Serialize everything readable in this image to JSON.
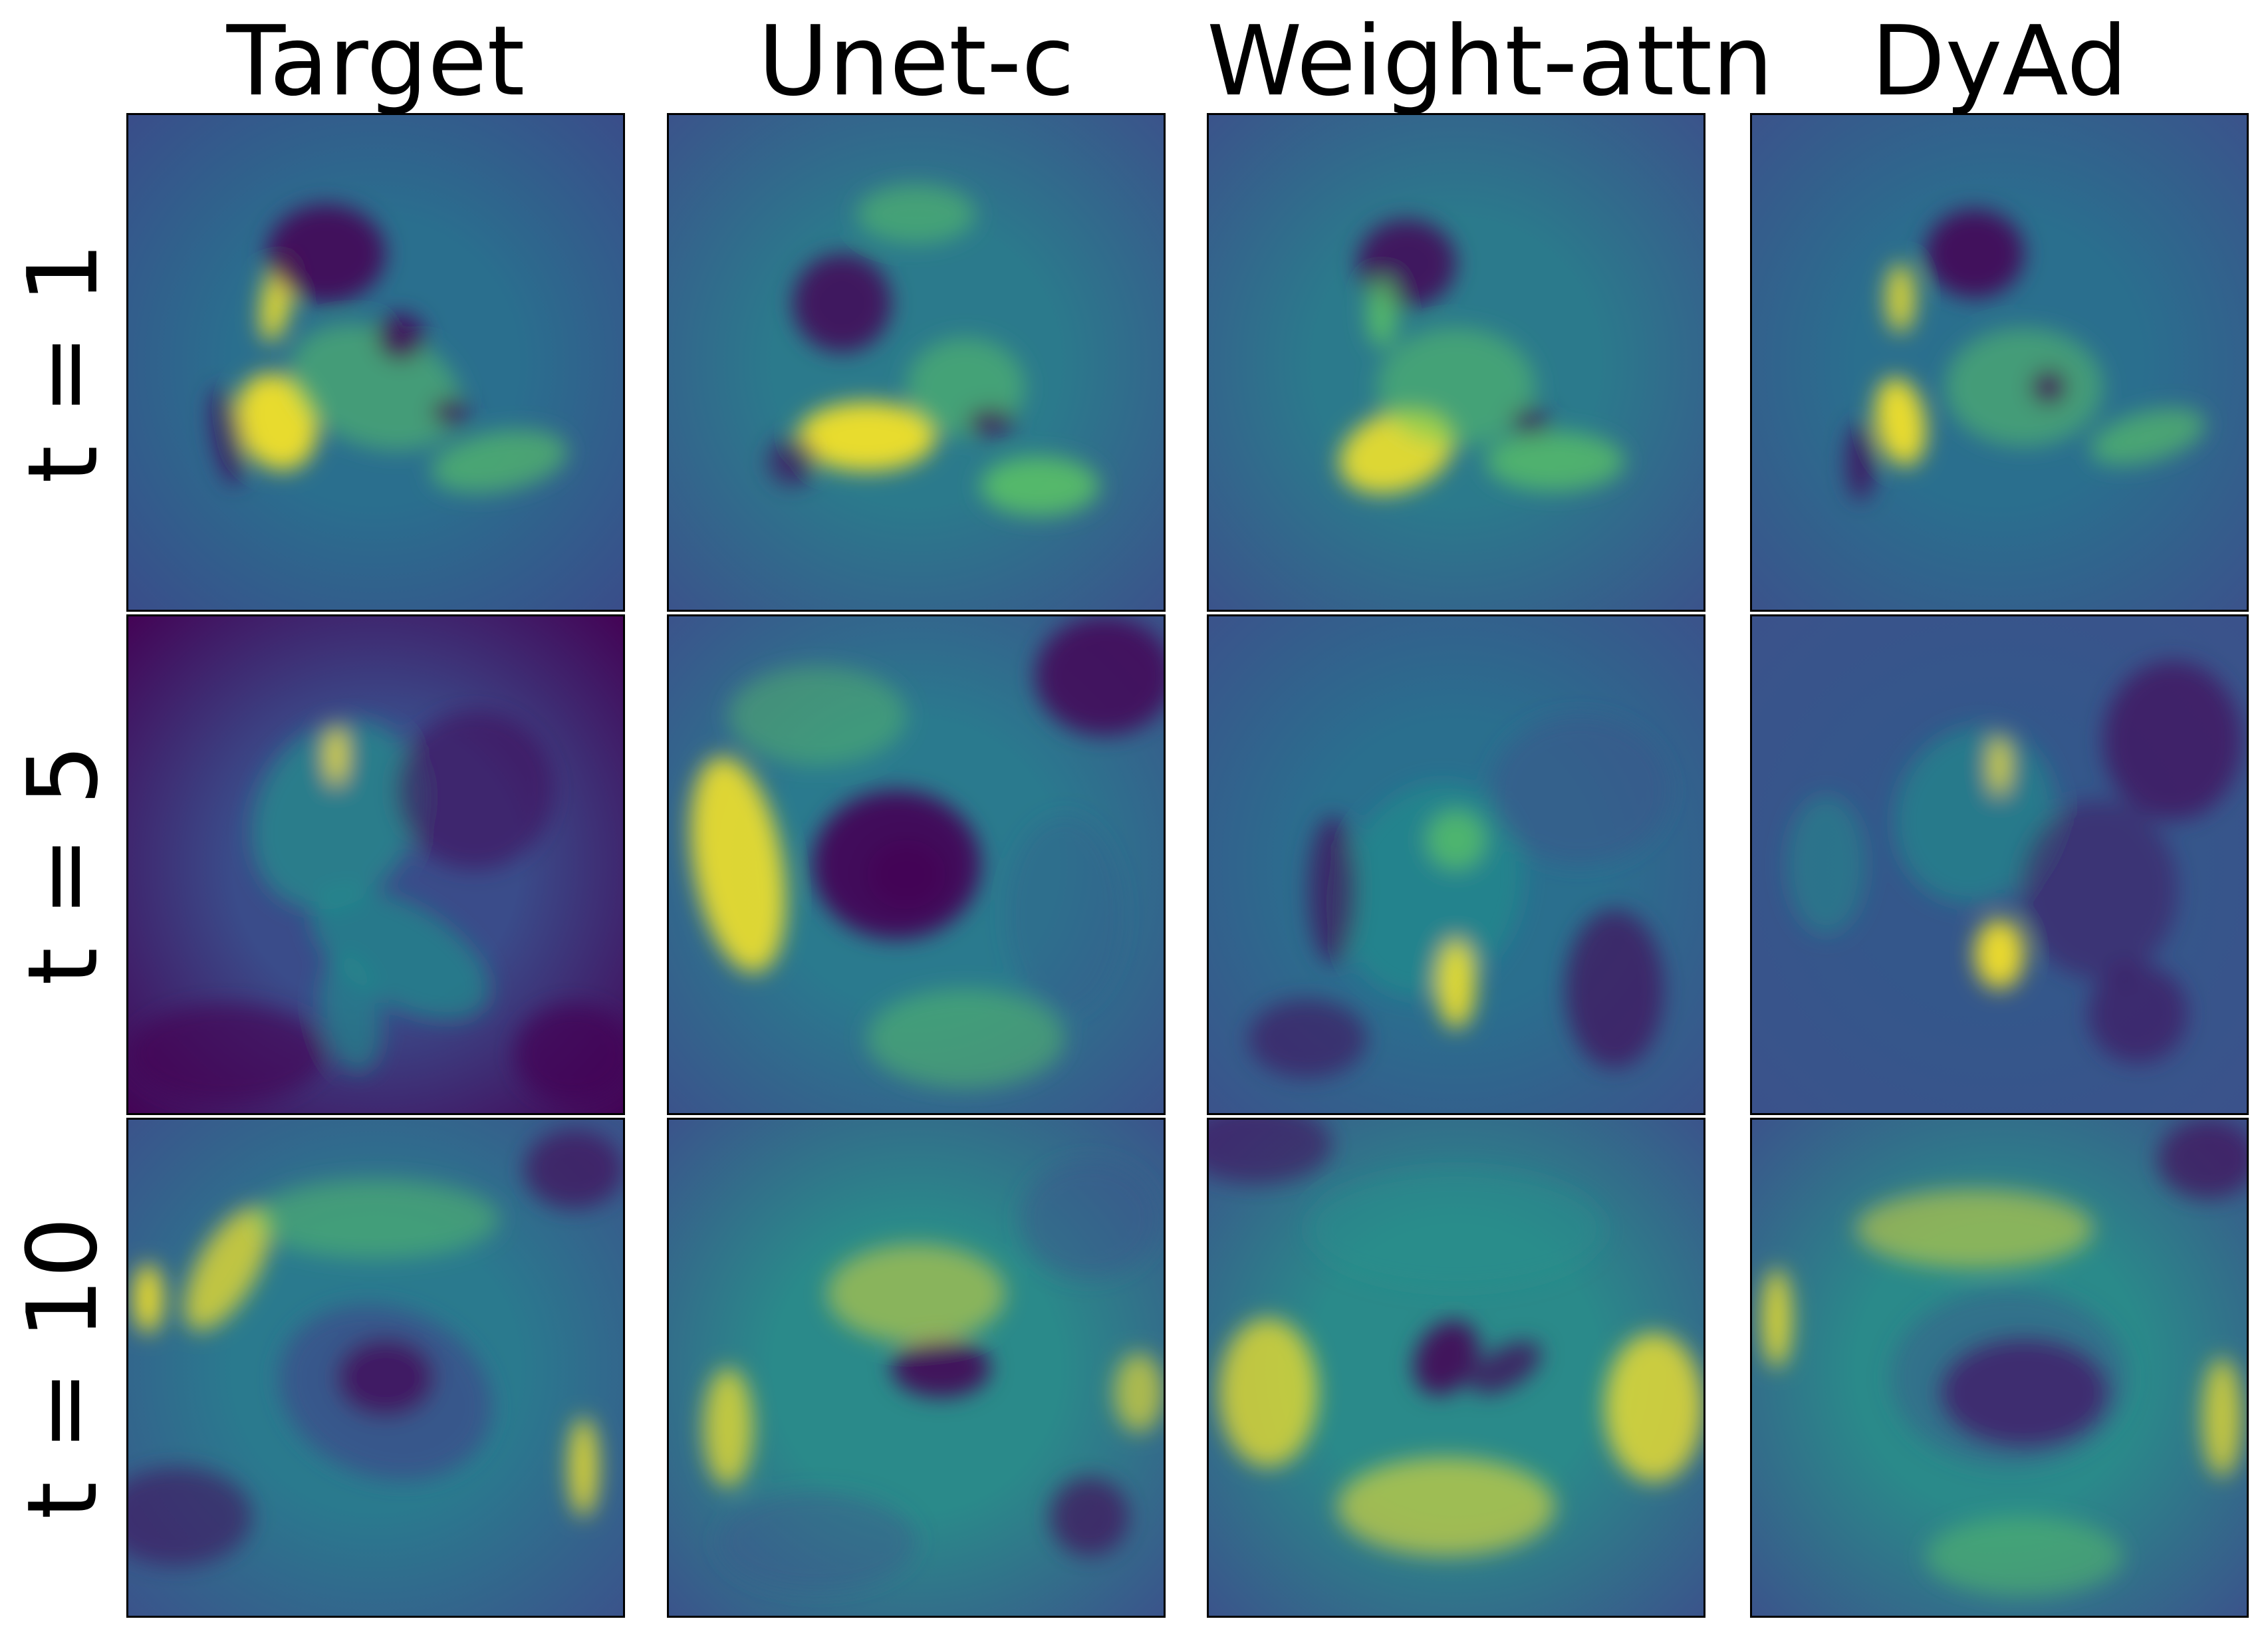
{
  "columns": [
    "Target",
    "Unet-c",
    "Weight-attn",
    "DyAd"
  ],
  "rows": [
    "t = 1",
    "t = 5",
    "t = 10"
  ],
  "colormap": {
    "name": "viridis",
    "stops": [
      "#440154",
      "#3b528b",
      "#21918c",
      "#5ec962",
      "#fde725"
    ]
  }
}
